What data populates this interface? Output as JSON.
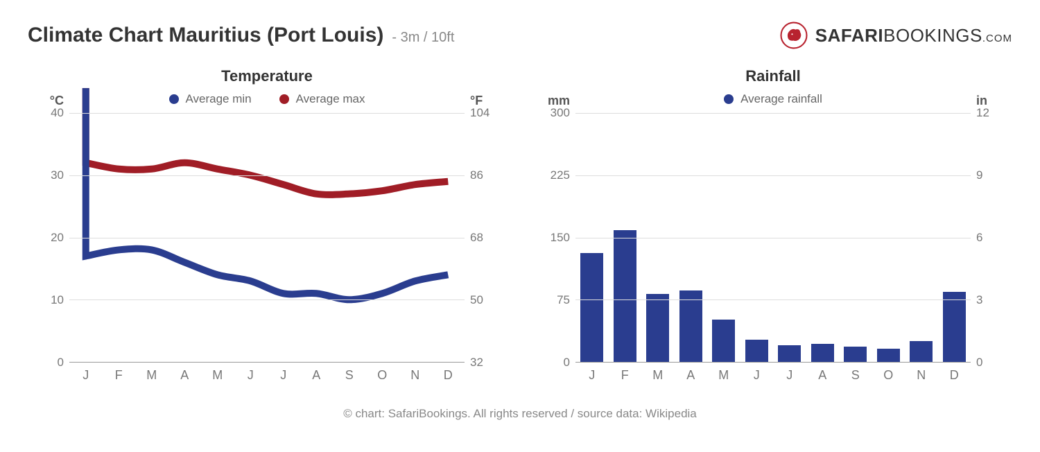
{
  "header": {
    "title": "Climate Chart Mauritius (Port Louis)",
    "subtitle": "- 3m / 10ft",
    "logo": {
      "icon_name": "lion-icon",
      "icon_color": "#b8232f",
      "text_bold": "SAFARI",
      "text_thin": "BOOKINGS",
      "text_domain": ".COM"
    }
  },
  "months": [
    "J",
    "F",
    "M",
    "A",
    "M",
    "J",
    "J",
    "A",
    "S",
    "O",
    "N",
    "D"
  ],
  "temperature_chart": {
    "title": "Temperature",
    "type": "line",
    "legend": [
      {
        "label": "Average min",
        "color": "#2a3d8f"
      },
      {
        "label": "Average max",
        "color": "#a01d26"
      }
    ],
    "y_left": {
      "unit": "°C",
      "min": 0,
      "max": 40,
      "ticks": [
        0,
        10,
        20,
        30,
        40
      ]
    },
    "y_right": {
      "unit": "°F",
      "ticks": [
        32,
        50,
        68,
        86,
        104
      ]
    },
    "series_min": [
      17,
      18,
      18,
      16,
      14,
      13,
      11,
      11,
      10,
      11,
      13,
      14,
      17
    ],
    "series_max": [
      32,
      31,
      31,
      32,
      31,
      30,
      28.5,
      27,
      27,
      27.5,
      28.5,
      29,
      30,
      31
    ],
    "start_spike_min": 44,
    "start_spike_max": 44,
    "line_color_min": "#2a3d8f",
    "line_color_max": "#a01d26",
    "line_width": 2.5,
    "grid_color": "#dddddd",
    "axis_color": "#999999",
    "background_color": "#ffffff",
    "tick_fontsize": 17,
    "title_fontsize": 22
  },
  "rainfall_chart": {
    "title": "Rainfall",
    "type": "bar",
    "legend": [
      {
        "label": "Average rainfall",
        "color": "#2a3d8f"
      }
    ],
    "y_left": {
      "unit": "mm",
      "min": 0,
      "max": 300,
      "ticks": [
        0,
        75,
        150,
        225,
        300
      ]
    },
    "y_right": {
      "unit": "in",
      "ticks": [
        0,
        3,
        6,
        9,
        12
      ]
    },
    "values": [
      131,
      159,
      82,
      86,
      51,
      27,
      20,
      22,
      18,
      16,
      25,
      84
    ],
    "bar_color": "#2a3d8f",
    "bar_width": 0.7,
    "grid_color": "#dddddd",
    "axis_color": "#999999",
    "background_color": "#ffffff",
    "tick_fontsize": 17,
    "title_fontsize": 22
  },
  "footer": {
    "text": "© chart: SafariBookings. All rights reserved / source data: Wikipedia"
  }
}
